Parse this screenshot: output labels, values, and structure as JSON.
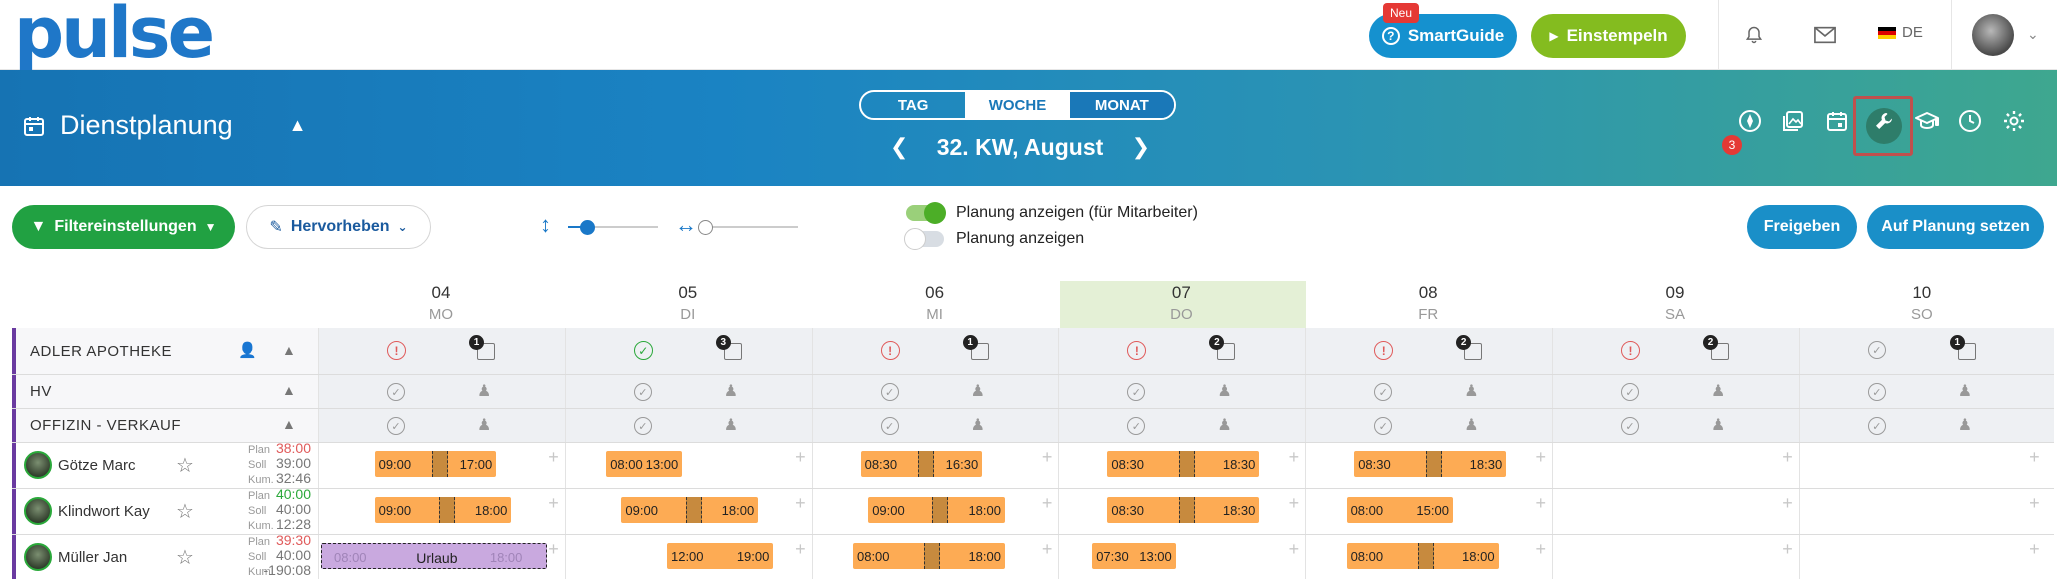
{
  "topbar": {
    "logo": "pulse",
    "smartguide_label": "SmartGuide",
    "smartguide_badge": "Neu",
    "stamp_label": "Einstempeln",
    "language": "DE"
  },
  "header": {
    "title": "Dienstplanung",
    "views": [
      "TAG",
      "WOCHE",
      "MONAT"
    ],
    "active_view": "WOCHE",
    "week_label": "32. KW, August",
    "notification_count": "3"
  },
  "toolbar": {
    "filter_label": "Filtereinstellungen",
    "highlight_label": "Hervorheben",
    "switch1_label": "Planung anzeigen (für Mitarbeiter)",
    "switch2_label": "Planung anzeigen",
    "release_label": "Freigeben",
    "plan_label": "Auf Planung setzen"
  },
  "days": [
    {
      "num": "04",
      "wd": "MO"
    },
    {
      "num": "05",
      "wd": "DI"
    },
    {
      "num": "06",
      "wd": "MI"
    },
    {
      "num": "07",
      "wd": "DO"
    },
    {
      "num": "08",
      "wd": "FR"
    },
    {
      "num": "09",
      "wd": "SA"
    },
    {
      "num": "10",
      "wd": "SO"
    }
  ],
  "groups": {
    "main": "ADLER APOTHEKE",
    "hv": "HV",
    "offizin": "OFFIZIN - VERKAUF"
  },
  "main_badges": [
    "1",
    "3",
    "1",
    "2",
    "2",
    "2",
    "1"
  ],
  "psk_labels": {
    "plan": "Plan",
    "soll": "Soll",
    "kum": "Kum."
  },
  "employees": [
    {
      "name": "Götze Marc",
      "plan": "38:00",
      "soll": "39:00",
      "kum": "32:46",
      "shifts": [
        [
          "09:00",
          "17:00"
        ],
        [
          "08:00",
          "13:00"
        ],
        [
          "08:30",
          "16:30"
        ],
        [
          "08:30",
          "18:30"
        ],
        [
          "08:30",
          "18:30"
        ]
      ]
    },
    {
      "name": "Klindwort Kay",
      "plan": "40:00",
      "soll": "40:00",
      "kum": "12:28",
      "shifts": [
        [
          "09:00",
          "18:00"
        ],
        [
          "09:00",
          "18:00"
        ],
        [
          "09:00",
          "18:00"
        ],
        [
          "08:30",
          "18:30"
        ],
        [
          "08:00",
          "15:00"
        ]
      ]
    },
    {
      "name": "Müller Jan",
      "plan": "39:30",
      "soll": "40:00",
      "kum": "-190:08",
      "vacation": {
        "label": "Urlaub",
        "start": "08:00",
        "end": "18:00"
      },
      "shifts": [
        [
          "12:00",
          "19:00"
        ],
        [
          "08:00",
          "18:00"
        ],
        [
          "07:30",
          "13:00"
        ],
        [
          "08:00",
          "18:00"
        ]
      ]
    }
  ],
  "colors": {
    "accent": "#1a8fc8",
    "shift": "#fdab54",
    "vacation": "#c9a9df",
    "today": "#e4f0d6"
  }
}
